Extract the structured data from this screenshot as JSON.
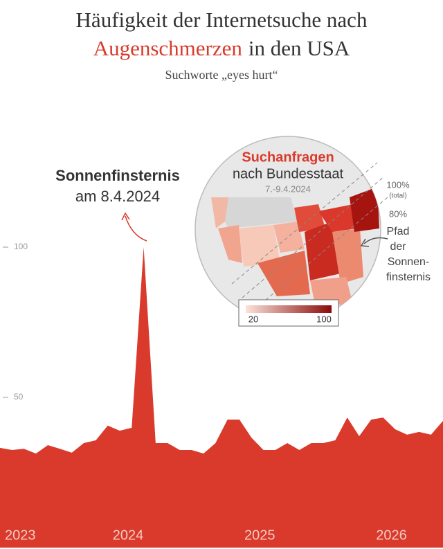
{
  "chart_data": {
    "type": "area",
    "title_lines": [
      "Häufigkeit der Internetsuche nach",
      "Augenschmerzen",
      "in den USA"
    ],
    "title_highlight_color": "#d93a2b",
    "subtitle": "Suchworte „eyes hurt“",
    "categories": [
      null,
      "2023",
      null,
      null,
      null,
      null,
      null,
      null,
      null,
      null,
      "2024",
      null,
      null,
      null,
      null,
      null,
      null,
      null,
      null,
      null,
      null,
      "2025",
      null,
      null,
      null,
      null,
      null,
      null,
      null,
      null,
      null,
      null,
      "2026",
      null,
      null,
      null,
      null,
      null
    ],
    "values": [
      33.2,
      32.5,
      32.9,
      31.3,
      34.1,
      32.9,
      31.6,
      34.8,
      35.7,
      40.6,
      38.9,
      39.9,
      100,
      34.8,
      34.8,
      32.5,
      32.5,
      31.3,
      34.8,
      42.6,
      42.6,
      36.6,
      32.5,
      32.5,
      34.8,
      32.5,
      34.8,
      34.8,
      35.7,
      43.3,
      37.1,
      42.6,
      43.3,
      39.4,
      37.6,
      38.5,
      37.6,
      42.2
    ],
    "color": "#d93a2b",
    "ylim": [
      0,
      100
    ],
    "yticks": [
      50,
      100
    ],
    "annotation": {
      "title": "Sonnenfinsternis",
      "text": "am 8.4.2024"
    },
    "map": {
      "title": "Suchanfragen",
      "subtitle": "nach Bundesstaat",
      "date": "7.-9.4.2024",
      "colorscale": {
        "colors": [
          "#fbe3da",
          "#8b0a0a"
        ],
        "ticks": [
          20,
          100
        ]
      },
      "path_labels": [
        "100%",
        "(total)",
        "80%"
      ],
      "path_caption": [
        "Pfad",
        "der",
        "Sonnen-",
        "finsternis"
      ]
    }
  }
}
